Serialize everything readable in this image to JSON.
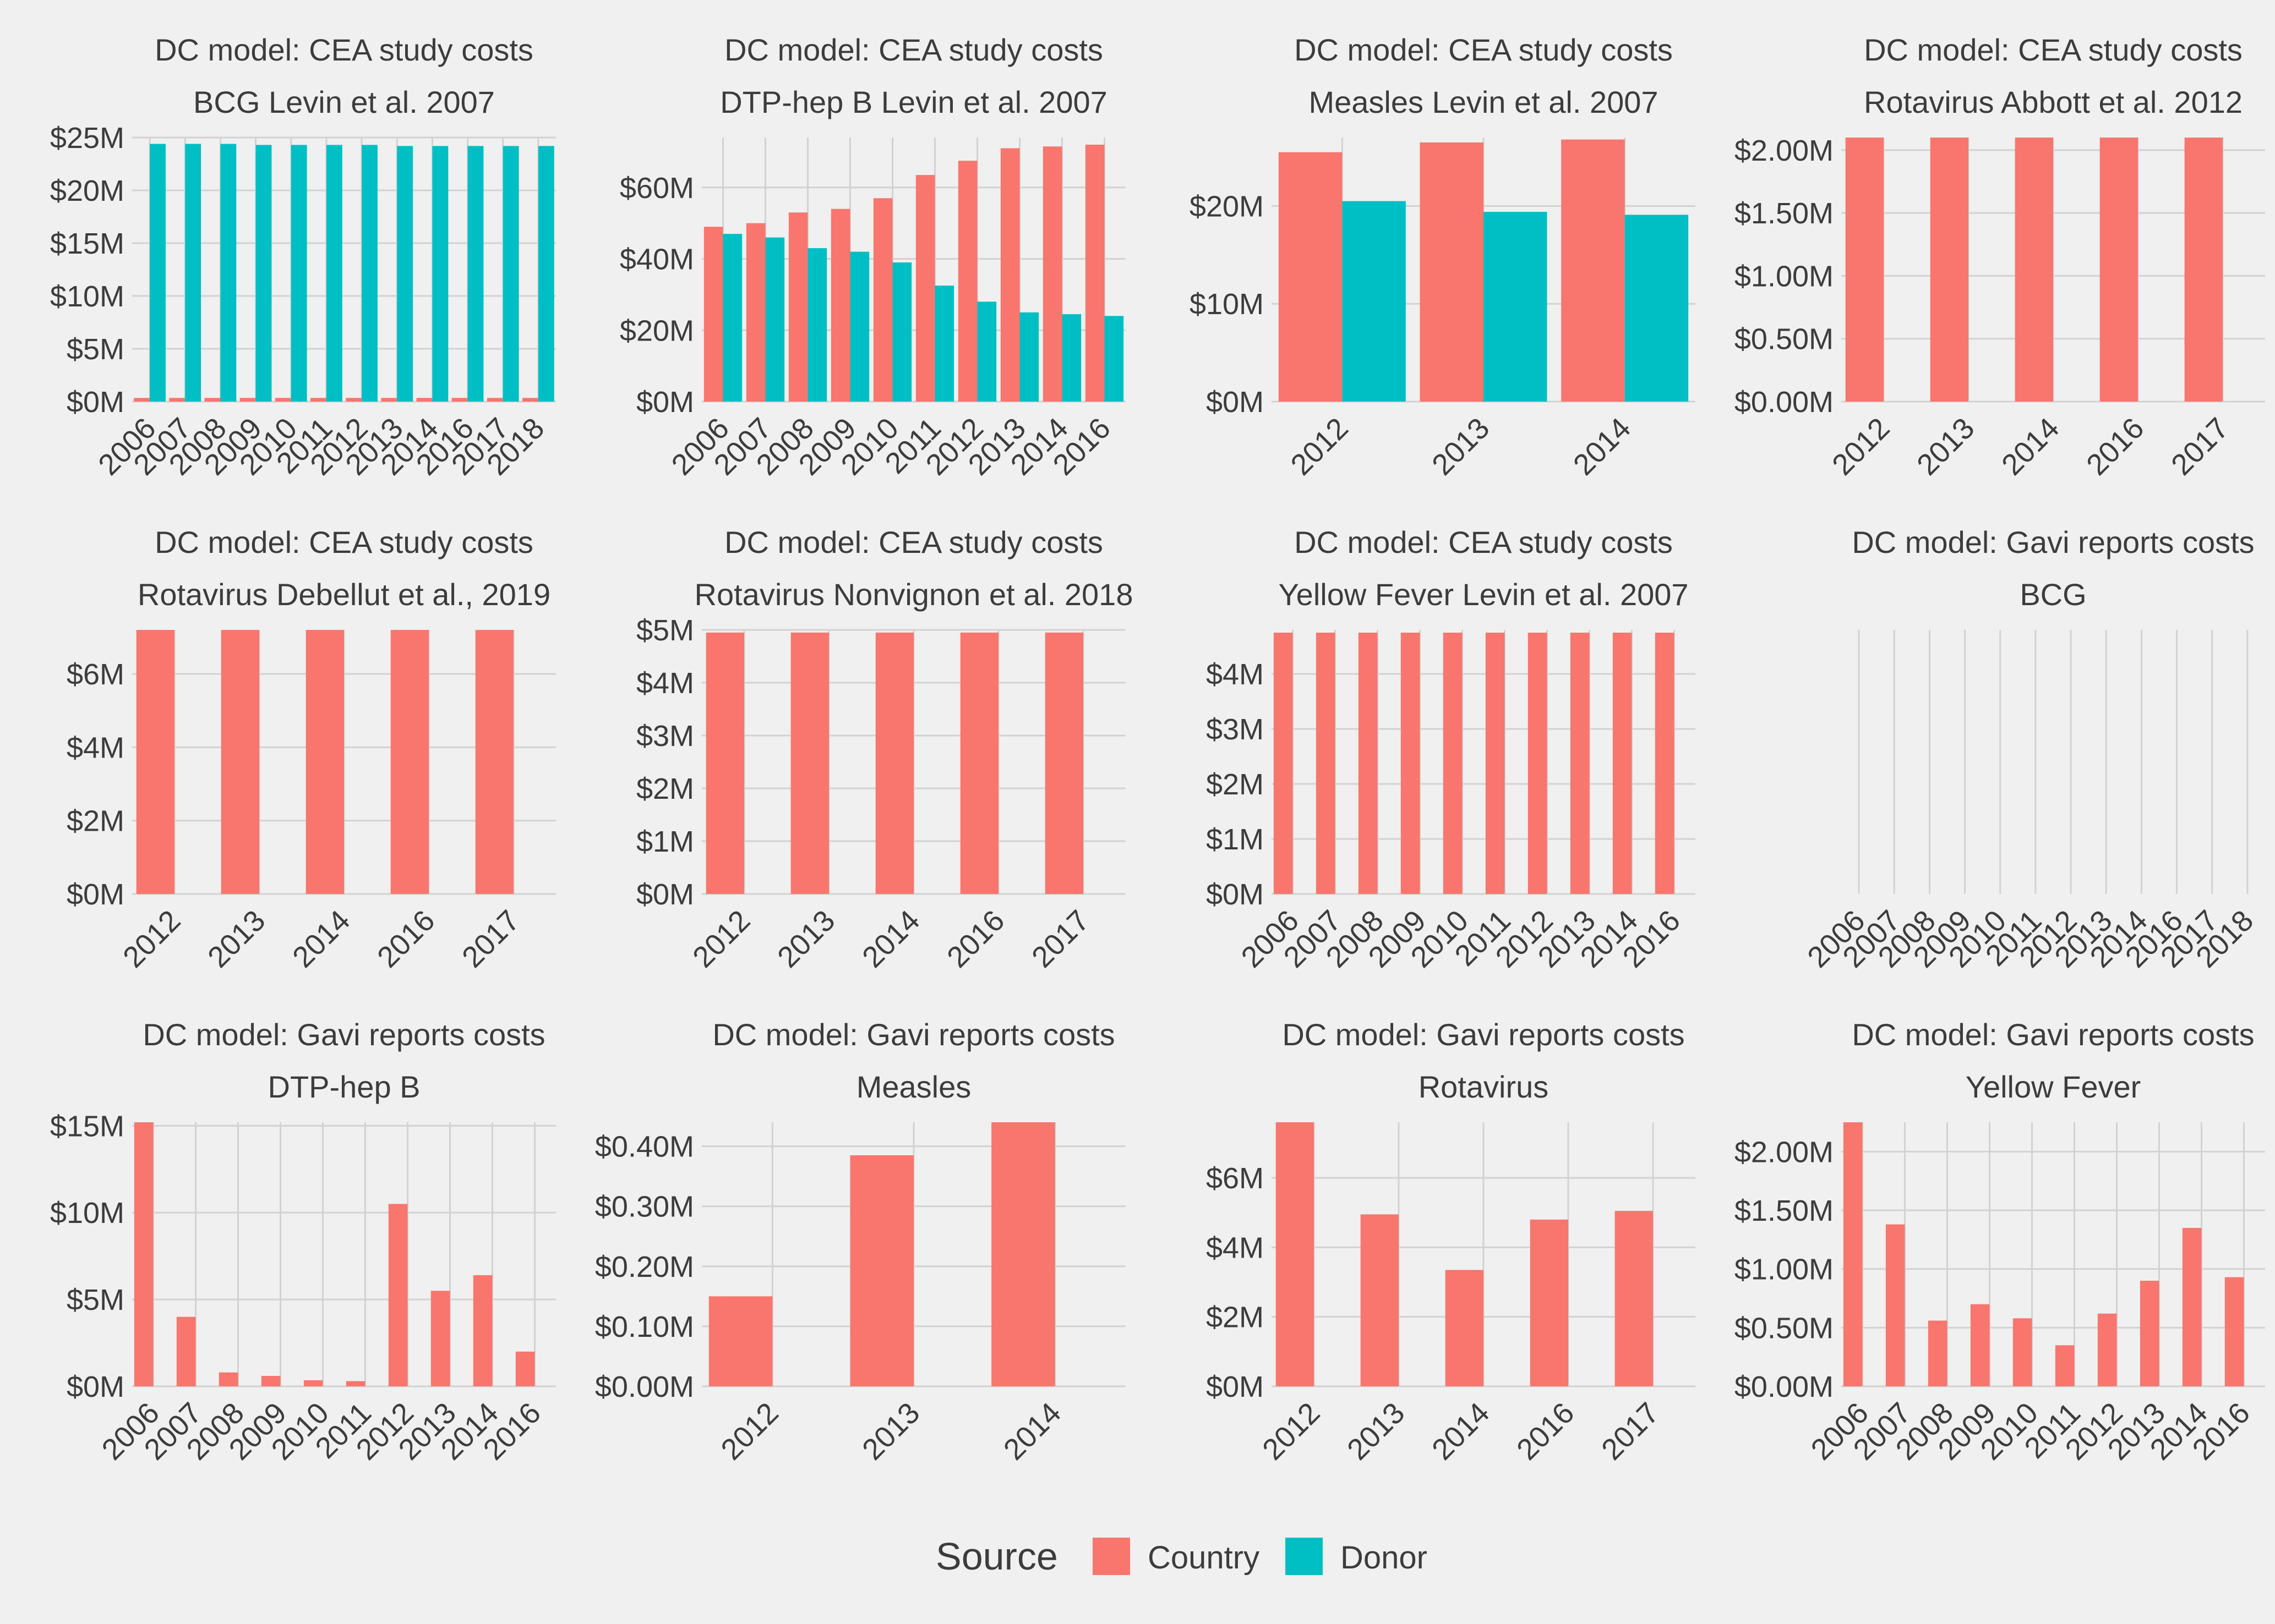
{
  "colors": {
    "background": "#f0f0f0",
    "grid": "#d2d2d2",
    "text": "#3c3c3c",
    "Country": "#f8766d",
    "Donor": "#00bfc4"
  },
  "legend": {
    "title": "Source",
    "items": [
      {
        "label": "Country",
        "color": "#f8766d"
      },
      {
        "label": "Donor",
        "color": "#00bfc4"
      }
    ]
  },
  "chart_data": [
    {
      "type": "bar",
      "title": "DC model: CEA study costs",
      "subtitle": "BCG Levin et al. 2007",
      "categories": [
        "2006",
        "2007",
        "2008",
        "2009",
        "2010",
        "2011",
        "2012",
        "2013",
        "2014",
        "2016",
        "2017",
        "2018"
      ],
      "series": [
        {
          "name": "Country",
          "values": [
            0.35,
            0.35,
            0.35,
            0.35,
            0.35,
            0.35,
            0.35,
            0.35,
            0.35,
            0.35,
            0.35,
            0.35
          ]
        },
        {
          "name": "Donor",
          "values": [
            24.4,
            24.4,
            24.4,
            24.3,
            24.3,
            24.3,
            24.3,
            24.2,
            24.2,
            24.2,
            24.2,
            24.2
          ]
        }
      ],
      "ylim": [
        0,
        25
      ],
      "yticks": [
        0,
        5,
        10,
        15,
        20,
        25
      ],
      "ytick_labels": [
        "$0M",
        "$5M",
        "$10M",
        "$15M",
        "$20M",
        "$25M"
      ],
      "legend": "bottom",
      "grid": true
    },
    {
      "type": "bar",
      "title": "DC model: CEA study costs",
      "subtitle": "DTP-hep B Levin et al. 2007",
      "categories": [
        "2006",
        "2007",
        "2008",
        "2009",
        "2010",
        "2011",
        "2012",
        "2013",
        "2014",
        "2016"
      ],
      "series": [
        {
          "name": "Country",
          "values": [
            49,
            50,
            53,
            54,
            57,
            63.5,
            67.5,
            71,
            71.5,
            72
          ]
        },
        {
          "name": "Donor",
          "values": [
            47,
            46,
            43,
            42,
            39,
            32.5,
            28,
            25,
            24.5,
            24
          ]
        }
      ],
      "ylim": [
        0,
        74
      ],
      "yticks": [
        0,
        20,
        40,
        60
      ],
      "ytick_labels": [
        "$0M",
        "$20M",
        "$40M",
        "$60M"
      ],
      "legend": "bottom",
      "grid": true
    },
    {
      "type": "bar",
      "title": "DC model: CEA study costs",
      "subtitle": "Measles Levin et al. 2007",
      "categories": [
        "2012",
        "2013",
        "2014"
      ],
      "series": [
        {
          "name": "Country",
          "values": [
            25.5,
            26.5,
            26.8
          ]
        },
        {
          "name": "Donor",
          "values": [
            20.5,
            19.4,
            19.1
          ]
        }
      ],
      "ylim": [
        0,
        27
      ],
      "yticks": [
        0,
        10,
        20
      ],
      "ytick_labels": [
        "$0M",
        "$10M",
        "$20M"
      ],
      "legend": "bottom",
      "grid": true
    },
    {
      "type": "bar",
      "title": "DC model: CEA study costs",
      "subtitle": "Rotavirus Abbott et al. 2012",
      "categories": [
        "2012",
        "2013",
        "2014",
        "2016",
        "2017"
      ],
      "series": [
        {
          "name": "Country",
          "values": [
            2.1,
            2.1,
            2.1,
            2.1,
            2.1
          ]
        },
        {
          "name": "Donor",
          "values": [
            0,
            0,
            0,
            0,
            0
          ]
        }
      ],
      "ylim": [
        0,
        2.1
      ],
      "yticks": [
        0,
        0.5,
        1.0,
        1.5,
        2.0
      ],
      "ytick_labels": [
        "$0.00M",
        "$0.50M",
        "$1.00M",
        "$1.50M",
        "$2.00M"
      ],
      "legend": "bottom",
      "grid": true
    },
    {
      "type": "bar",
      "title": "DC model: CEA study costs",
      "subtitle": "Rotavirus Debellut et al., 2019",
      "categories": [
        "2012",
        "2013",
        "2014",
        "2016",
        "2017"
      ],
      "series": [
        {
          "name": "Country",
          "values": [
            7.2,
            7.2,
            7.2,
            7.2,
            7.2
          ]
        },
        {
          "name": "Donor",
          "values": [
            0,
            0,
            0,
            0,
            0
          ]
        }
      ],
      "ylim": [
        0,
        7.2
      ],
      "yticks": [
        0,
        2,
        4,
        6
      ],
      "ytick_labels": [
        "$0M",
        "$2M",
        "$4M",
        "$6M"
      ],
      "legend": "bottom",
      "grid": true
    },
    {
      "type": "bar",
      "title": "DC model: CEA study costs",
      "subtitle": "Rotavirus Nonvignon et al. 2018",
      "categories": [
        "2012",
        "2013",
        "2014",
        "2016",
        "2017"
      ],
      "series": [
        {
          "name": "Country",
          "values": [
            4.95,
            4.95,
            4.95,
            4.95,
            4.95
          ]
        },
        {
          "name": "Donor",
          "values": [
            0,
            0,
            0,
            0,
            0
          ]
        }
      ],
      "ylim": [
        0,
        5
      ],
      "yticks": [
        0,
        1,
        2,
        3,
        4,
        5
      ],
      "ytick_labels": [
        "$0M",
        "$1M",
        "$2M",
        "$3M",
        "$4M",
        "$5M"
      ],
      "legend": "bottom",
      "grid": true
    },
    {
      "type": "bar",
      "title": "DC model: CEA study costs",
      "subtitle": "Yellow Fever Levin et al. 2007",
      "categories": [
        "2006",
        "2007",
        "2008",
        "2009",
        "2010",
        "2011",
        "2012",
        "2013",
        "2014",
        "2016"
      ],
      "series": [
        {
          "name": "Country",
          "values": [
            4.75,
            4.75,
            4.75,
            4.75,
            4.75,
            4.75,
            4.75,
            4.75,
            4.75,
            4.75
          ]
        },
        {
          "name": "Donor",
          "values": [
            0,
            0,
            0,
            0,
            0,
            0,
            0,
            0,
            0,
            0
          ]
        }
      ],
      "ylim": [
        0,
        4.8
      ],
      "yticks": [
        0,
        1,
        2,
        3,
        4
      ],
      "ytick_labels": [
        "$0M",
        "$1M",
        "$2M",
        "$3M",
        "$4M"
      ],
      "legend": "bottom",
      "grid": true
    },
    {
      "type": "bar",
      "title": "DC model: Gavi reports costs",
      "subtitle": "BCG",
      "categories": [
        "2006",
        "2007",
        "2008",
        "2009",
        "2010",
        "2011",
        "2012",
        "2013",
        "2014",
        "2016",
        "2017",
        "2018"
      ],
      "series": [],
      "ylim": [
        0,
        1
      ],
      "yticks": [],
      "ytick_labels": [],
      "legend": "bottom",
      "grid": true
    },
    {
      "type": "bar",
      "title": "DC model: Gavi reports costs",
      "subtitle": "DTP-hep B",
      "categories": [
        "2006",
        "2007",
        "2008",
        "2009",
        "2010",
        "2011",
        "2012",
        "2013",
        "2014",
        "2016"
      ],
      "series": [
        {
          "name": "Country",
          "values": [
            15.2,
            4.0,
            0.8,
            0.6,
            0.35,
            0.3,
            10.5,
            5.5,
            6.4,
            2.0
          ]
        },
        {
          "name": "Donor",
          "values": [
            0,
            0,
            0,
            0,
            0,
            0,
            0,
            0,
            0,
            0
          ]
        }
      ],
      "ylim": [
        0,
        15.2
      ],
      "yticks": [
        0,
        5,
        10,
        15
      ],
      "ytick_labels": [
        "$0M",
        "$5M",
        "$10M",
        "$15M"
      ],
      "legend": "bottom",
      "grid": true
    },
    {
      "type": "bar",
      "title": "DC model: Gavi reports costs",
      "subtitle": "Measles",
      "categories": [
        "2012",
        "2013",
        "2014"
      ],
      "series": [
        {
          "name": "Country",
          "values": [
            0.15,
            0.385,
            0.44
          ]
        },
        {
          "name": "Donor",
          "values": [
            0,
            0,
            0
          ]
        }
      ],
      "ylim": [
        0,
        0.44
      ],
      "yticks": [
        0,
        0.1,
        0.2,
        0.3,
        0.4
      ],
      "ytick_labels": [
        "$0.00M",
        "$0.10M",
        "$0.20M",
        "$0.30M",
        "$0.40M"
      ],
      "legend": "bottom",
      "grid": true
    },
    {
      "type": "bar",
      "title": "DC model: Gavi reports costs",
      "subtitle": "Rotavirus",
      "categories": [
        "2012",
        "2013",
        "2014",
        "2016",
        "2017"
      ],
      "series": [
        {
          "name": "Country",
          "values": [
            7.6,
            4.95,
            3.35,
            4.8,
            5.05
          ]
        },
        {
          "name": "Donor",
          "values": [
            0,
            0,
            0,
            0,
            0
          ]
        }
      ],
      "ylim": [
        0,
        7.6
      ],
      "yticks": [
        0,
        2,
        4,
        6
      ],
      "ytick_labels": [
        "$0M",
        "$2M",
        "$4M",
        "$6M"
      ],
      "legend": "bottom",
      "grid": true
    },
    {
      "type": "bar",
      "title": "DC model: Gavi reports costs",
      "subtitle": "Yellow Fever",
      "categories": [
        "2006",
        "2007",
        "2008",
        "2009",
        "2010",
        "2011",
        "2012",
        "2013",
        "2014",
        "2016"
      ],
      "series": [
        {
          "name": "Country",
          "values": [
            2.25,
            1.38,
            0.56,
            0.7,
            0.58,
            0.35,
            0.62,
            0.9,
            1.35,
            0.93
          ]
        },
        {
          "name": "Donor",
          "values": [
            0,
            0,
            0,
            0,
            0,
            0,
            0,
            0,
            0,
            0
          ]
        }
      ],
      "ylim": [
        0,
        2.25
      ],
      "yticks": [
        0,
        0.5,
        1.0,
        1.5,
        2.0
      ],
      "ytick_labels": [
        "$0.00M",
        "$0.50M",
        "$1.00M",
        "$1.50M",
        "$2.00M"
      ],
      "legend": "bottom",
      "grid": true
    }
  ]
}
